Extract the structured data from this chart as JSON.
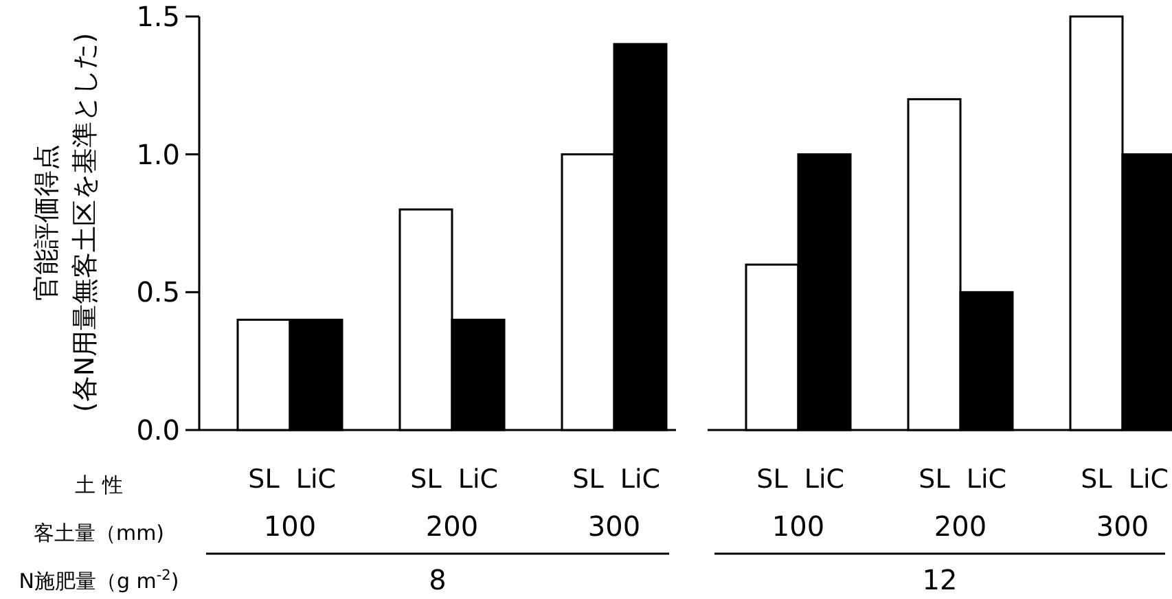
{
  "chart_data": [
    {
      "type": "bar",
      "ylabel": "官能評価得点(各N用量無客土区を基準とした)",
      "xlabel": "8",
      "categories": [
        "100",
        "200",
        "300"
      ],
      "series": [
        {
          "name": "SL",
          "color": "#ffffff",
          "values": [
            0.4,
            0.8,
            1.0
          ]
        },
        {
          "name": "LiC",
          "color": "#000000",
          "values": [
            0.4,
            0.4,
            1.4
          ]
        }
      ],
      "ylim": [
        0,
        1.5
      ],
      "yticks": [
        {
          "value": 0,
          "label": "0.0"
        },
        0.5,
        {
          "value": 1,
          "label": "1.0"
        },
        1.5
      ],
      "annotations": [
        "土 性",
        "客土量（mm)",
        "N施肥量（g m$^{-2}$)"
      ]
    },
    {
      "type": "bar",
      "xlabel": "12",
      "categories": [
        "100",
        "200",
        "300"
      ],
      "series": [
        {
          "name": "SL",
          "color": "#ffffff",
          "values": [
            0.6,
            1.2,
            1.5
          ]
        },
        {
          "name": "LiC",
          "color": "#000000",
          "values": [
            1.0,
            0.5,
            1.0
          ]
        }
      ],
      "ylim": [
        0,
        1.5
      ],
      "tick_labels": "x"
    }
  ]
}
